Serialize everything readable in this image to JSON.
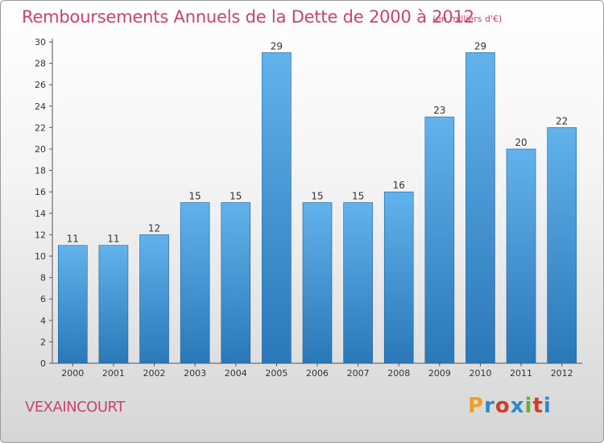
{
  "title": "Remboursements Annuels de la Dette de 2000 à 2012",
  "subtitle": "(en milliers d'€)",
  "city": "VEXAINCOURT",
  "logo": {
    "text": "Proxiti",
    "colors": [
      "#f0a020",
      "#2a8ad0",
      "#d43a2a",
      "#2a8ad0",
      "#6ab02e",
      "#d43a2a",
      "#2a8ad0"
    ]
  },
  "colors": {
    "title": "#c8446e",
    "bar_top": "#62b2ec",
    "bar_bottom": "#2a78b8",
    "bar_edge": "#1f5f98"
  },
  "chart_data": {
    "type": "bar",
    "categories": [
      "2000",
      "2001",
      "2002",
      "2003",
      "2004",
      "2005",
      "2006",
      "2007",
      "2008",
      "2009",
      "2010",
      "2011",
      "2012"
    ],
    "values": [
      11,
      11,
      12,
      15,
      15,
      29,
      15,
      15,
      16,
      23,
      29,
      20,
      22
    ],
    "data_labels": [
      "11",
      "11",
      "12",
      "15",
      "15",
      "29",
      "15",
      "15",
      "16",
      "23",
      "29",
      "20",
      "22"
    ],
    "yticks": [
      "0",
      "2",
      "4",
      "6",
      "8",
      "10",
      "12",
      "14",
      "16",
      "18",
      "20",
      "22",
      "24",
      "26",
      "28",
      "30"
    ],
    "ylim": [
      0,
      30
    ],
    "grid": false,
    "xlabel": "",
    "ylabel": ""
  }
}
